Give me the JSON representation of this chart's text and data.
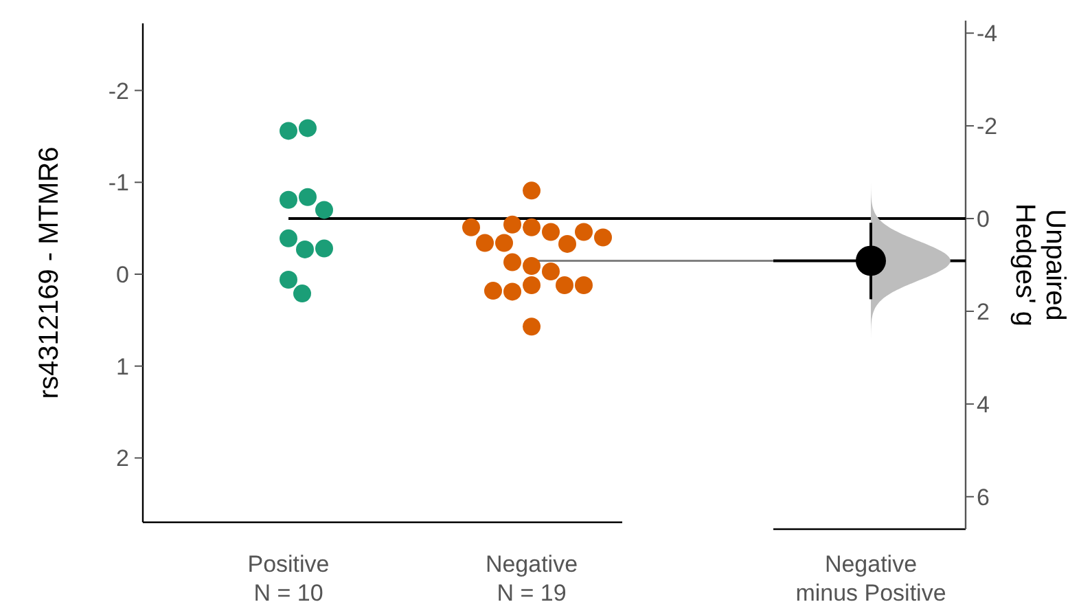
{
  "chart_data": {
    "type": "scatter",
    "ylabel": "rs4312169 - MTMR6",
    "y2label": "Unpaired\nHedges' g",
    "categories": [
      "Positive\nN = 10",
      "Negative\nN = 19",
      "Negative\nminus Positive"
    ],
    "ylim": [
      2.7,
      -2.73
    ],
    "yticks": [
      -2,
      -1,
      0,
      1,
      2
    ],
    "y2lim": [
      6.7,
      -4.27
    ],
    "y2ticks": [
      -4,
      -2,
      0,
      2,
      4,
      6
    ],
    "marker": "circle",
    "grid": false,
    "series": [
      {
        "color": "#1b9e77",
        "x": [
          "Positive\nN = 10",
          "Positive\nN = 10",
          "Positive\nN = 10",
          "Positive\nN = 10",
          "Positive\nN = 10",
          "Positive\nN = 10",
          "Positive\nN = 10",
          "Positive\nN = 10",
          "Positive\nN = 10",
          "Positive\nN = 10"
        ],
        "values": [
          -1.56,
          -1.59,
          -0.81,
          -0.84,
          -0.7,
          -0.39,
          -0.27,
          -0.28,
          0.06,
          0.21
        ]
      },
      {
        "color": "#d95f02",
        "x": [
          "Negative\nN = 19",
          "Negative\nN = 19",
          "Negative\nN = 19",
          "Negative\nN = 19",
          "Negative\nN = 19",
          "Negative\nN = 19",
          "Negative\nN = 19",
          "Negative\nN = 19",
          "Negative\nN = 19",
          "Negative\nN = 19",
          "Negative\nN = 19",
          "Negative\nN = 19",
          "Negative\nN = 19",
          "Negative\nN = 19",
          "Negative\nN = 19",
          "Negative\nN = 19",
          "Negative\nN = 19",
          "Negative\nN = 19",
          "Negative\nN = 19"
        ],
        "values": [
          -0.91,
          -0.51,
          -0.54,
          -0.46,
          -0.34,
          -0.33,
          -0.34,
          -0.46,
          -0.51,
          -0.4,
          -0.09,
          -0.13,
          -0.03,
          0.12,
          0.19,
          0.12,
          0.18,
          0.12,
          0.57
        ]
      },
      {
        "axis": "y2",
        "color": "#000000",
        "x": [
          "Negative\nminus Positive"
        ],
        "values": [
          0.91
        ],
        "errors": [
          [
            0.09,
            1.74
          ]
        ]
      }
    ],
    "ref_lines": [
      {
        "axis": "y2",
        "value": 0,
        "color": "#000000"
      },
      {
        "axis": "y2",
        "value": 0.91,
        "color": "#808080"
      },
      {
        "axis": "y2",
        "value": 0.91,
        "color": "#000000"
      }
    ]
  }
}
